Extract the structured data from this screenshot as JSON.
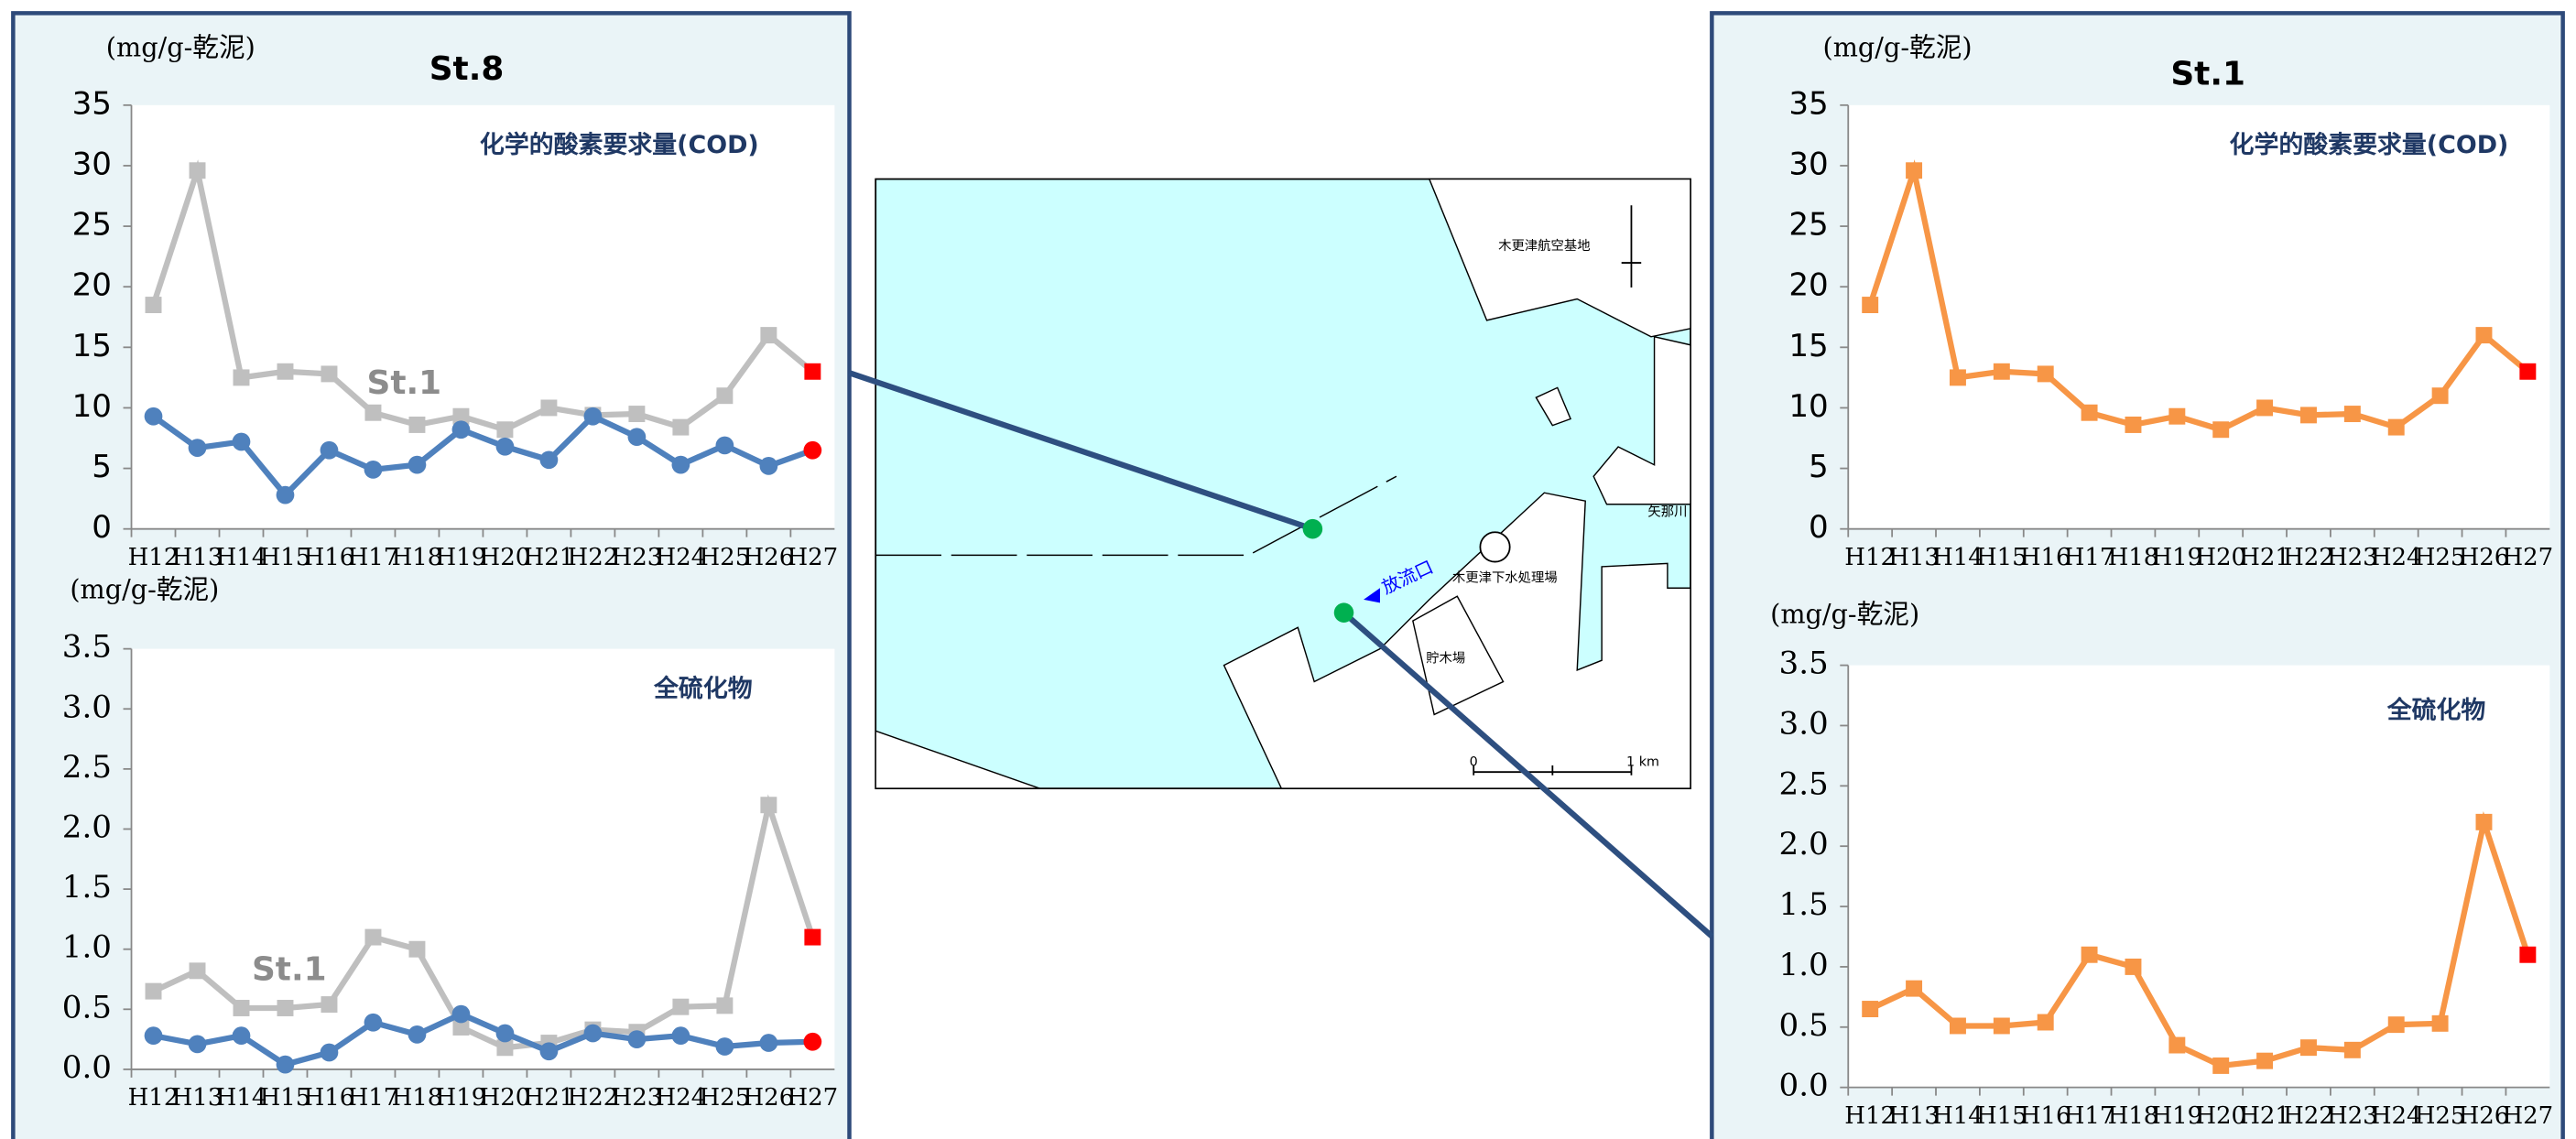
{
  "chart_data": [
    {
      "type": "line",
      "title": "St.8",
      "subtitle": "化学的酸素要求量(COD)",
      "ylabel": "(mg/g-乾泥)",
      "categories": [
        "H12",
        "H13",
        "H14",
        "H15",
        "H16",
        "H17",
        "H18",
        "H19",
        "H20",
        "H21",
        "H22",
        "H23",
        "H24",
        "H25",
        "H26",
        "H27"
      ],
      "ylim": [
        0,
        35
      ],
      "yticks": [
        0,
        5,
        10,
        15,
        20,
        25,
        30,
        35
      ],
      "last_point_color": "#ff0000",
      "series": [
        {
          "name": "St.1",
          "color": "#bfbfbf",
          "marker": "square",
          "values": [
            18.5,
            29.6,
            12.5,
            13.0,
            12.8,
            9.6,
            8.6,
            9.3,
            8.2,
            10.0,
            9.4,
            9.5,
            8.4,
            11.0,
            16.0,
            13.0
          ]
        },
        {
          "color": "#4f81bd",
          "marker": "circle",
          "values": [
            9.3,
            6.7,
            7.2,
            2.8,
            6.5,
            4.9,
            5.3,
            8.2,
            6.8,
            5.7,
            9.3,
            7.6,
            5.3,
            6.9,
            5.2,
            6.5
          ]
        }
      ]
    },
    {
      "type": "line",
      "subtitle": "全硫化物",
      "ylabel": "(mg/g-乾泥)",
      "categories": [
        "H12",
        "H13",
        "H14",
        "H15",
        "H16",
        "H17",
        "H18",
        "H19",
        "H20",
        "H21",
        "H22",
        "H23",
        "H24",
        "H25",
        "H26",
        "H27"
      ],
      "ylim": [
        0,
        3.5
      ],
      "yticks": [
        {
          "value": 0,
          "label": "0.0"
        },
        0.5,
        {
          "value": 1,
          "label": "1.0"
        },
        1.5,
        {
          "value": 2,
          "label": "2.0"
        },
        2.5,
        {
          "value": 3,
          "label": "3.0"
        },
        3.5
      ],
      "last_point_color": "#ff0000",
      "series": [
        {
          "name": "St.1",
          "color": "#bfbfbf",
          "marker": "square",
          "values": [
            0.65,
            0.82,
            0.51,
            0.51,
            0.54,
            1.1,
            1.0,
            0.35,
            0.18,
            0.22,
            0.33,
            0.31,
            0.52,
            0.53,
            2.2,
            1.1
          ]
        },
        {
          "color": "#4f81bd",
          "marker": "circle",
          "values": [
            0.28,
            0.21,
            0.28,
            0.04,
            0.14,
            0.39,
            0.29,
            0.46,
            0.3,
            0.15,
            0.3,
            0.25,
            0.28,
            0.19,
            0.22,
            0.23
          ]
        }
      ]
    },
    {
      "type": "line",
      "title": "St.1",
      "subtitle": "化学的酸素要求量(COD)",
      "ylabel": "(mg/g-乾泥)",
      "categories": [
        "H12",
        "H13",
        "H14",
        "H15",
        "H16",
        "H17",
        "H18",
        "H19",
        "H20",
        "H21",
        "H22",
        "H23",
        "H24",
        "H25",
        "H26",
        "H27"
      ],
      "ylim": [
        0,
        35
      ],
      "yticks": [
        0,
        5,
        10,
        15,
        20,
        25,
        30,
        35
      ],
      "last_point_color": "#ff0000",
      "series": [
        {
          "color": "#f79646",
          "marker": "square",
          "values": [
            18.5,
            29.6,
            12.5,
            13.0,
            12.8,
            9.6,
            8.6,
            9.3,
            8.2,
            10.0,
            9.4,
            9.5,
            8.4,
            11.0,
            16.0,
            13.0
          ]
        }
      ]
    },
    {
      "type": "line",
      "subtitle": "全硫化物",
      "ylabel": "(mg/g-乾泥)",
      "categories": [
        "H12",
        "H13",
        "H14",
        "H15",
        "H16",
        "H17",
        "H18",
        "H19",
        "H20",
        "H21",
        "H22",
        "H23",
        "H24",
        "H25",
        "H26",
        "H27"
      ],
      "ylim": [
        0,
        3.5
      ],
      "yticks": [
        {
          "value": 0,
          "label": "0.0"
        },
        0.5,
        {
          "value": 1,
          "label": "1.0"
        },
        1.5,
        {
          "value": 2,
          "label": "2.0"
        },
        2.5,
        {
          "value": 3,
          "label": "3.0"
        },
        3.5
      ],
      "last_point_color": "#ff0000",
      "series": [
        {
          "color": "#f79646",
          "marker": "square",
          "values": [
            0.65,
            0.82,
            0.51,
            0.51,
            0.54,
            1.1,
            1.0,
            0.35,
            0.18,
            0.22,
            0.33,
            0.31,
            0.52,
            0.53,
            2.2,
            1.1
          ]
        }
      ]
    }
  ],
  "map": {
    "labels": {
      "airbase": "木更津航空基地",
      "river": "矢那川",
      "plant": "木更津下水処理場",
      "pond": "貯木場",
      "outfall": "放流口"
    },
    "scale": {
      "start": "0",
      "end": "1 km"
    }
  }
}
